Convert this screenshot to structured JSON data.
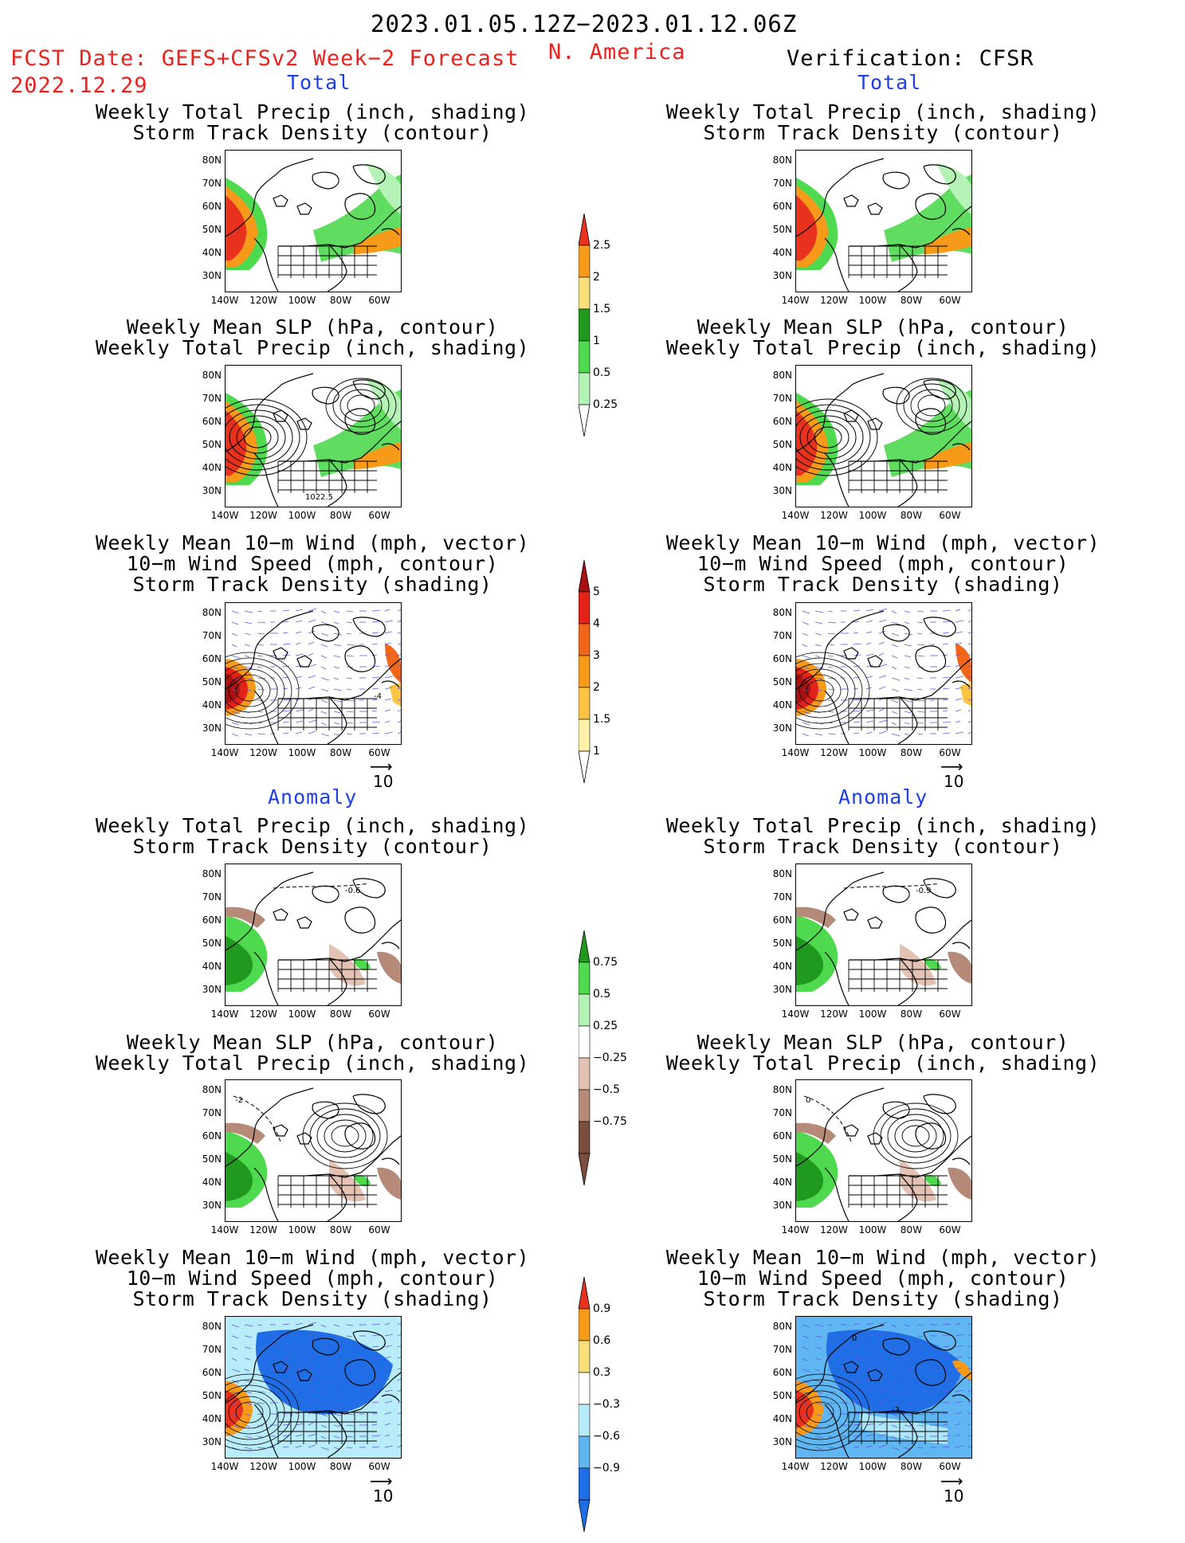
{
  "header": {
    "period": "2023.01.05.12Z−2023.01.12.06Z",
    "fcst_label": "FCST Date: GEFS+CFSv2 Week−2 Forecast",
    "fcst_date": "2022.12.29",
    "region": "N. America",
    "verification": "Verification: CFSR"
  },
  "sections": {
    "total": "Total",
    "anomaly": "Anomaly"
  },
  "panel_titles": {
    "precip_track": [
      "Weekly Total Precip (inch, shading)",
      "Storm Track Density (contour)"
    ],
    "slp_precip": [
      "Weekly Mean SLP (hPa, contour)",
      "Weekly Total Precip (inch, shading)"
    ],
    "wind_track": [
      "Weekly Mean 10−m Wind (mph, vector)",
      "10−m Wind Speed (mph, contour)",
      "Storm Track Density (shading)"
    ]
  },
  "axes": {
    "lat_labels": [
      "80N",
      "70N",
      "60N",
      "50N",
      "40N",
      "30N"
    ],
    "lon_labels": [
      "140W",
      "120W",
      "100W",
      "80W",
      "60W"
    ]
  },
  "vector_reference": "10",
  "contour_annotations": {
    "fcst_slp_total": "1022.5",
    "fcst_track_anom": "-0.6",
    "cfsr_track_anom": "-0.9",
    "fcst_slp_anom": "-2",
    "cfsr_slp_anom": "0",
    "cfsr_wind_anom_a": "0",
    "cfsr_wind_anom_b": "-3",
    "fcst_wind_total": "-4"
  },
  "colorbars": {
    "precip_total": {
      "labels": [
        "2.5",
        "2",
        "1.5",
        "1",
        "0.5",
        "0.25"
      ],
      "colors": [
        "#e8321e",
        "#f79a1a",
        "#f9df7a",
        "#1f9a1f",
        "#4fd94f",
        "#b5f2b5"
      ]
    },
    "track_total": {
      "labels": [
        "5",
        "4",
        "3",
        "2",
        "1.5",
        "1"
      ],
      "colors": [
        "#a8110f",
        "#e3231a",
        "#f2661a",
        "#f79a1a",
        "#fbc444",
        "#fef2a8"
      ]
    },
    "precip_anom": {
      "labels": [
        "0.75",
        "0.5",
        "0.25",
        "−0.25",
        "−0.5",
        "−0.75"
      ],
      "colors": [
        "#1f9a1f",
        "#4fd94f",
        "#b5f2b5",
        "#ffffff",
        "#e3c2b4",
        "#b58a78",
        "#7a4f3f"
      ]
    },
    "track_anom": {
      "labels": [
        "0.9",
        "0.6",
        "0.3",
        "−0.3",
        "−0.6",
        "−0.9"
      ],
      "colors": [
        "#e8321e",
        "#f79a1a",
        "#f9df7a",
        "#ffffff",
        "#b8ecfb",
        "#5fb6f2",
        "#1f6ee6"
      ]
    }
  },
  "colors": {
    "label_red": "#e8231f",
    "label_blue": "#1f3fe6",
    "precip_pos": "#4fd94f",
    "precip_neg": "#c49b8a",
    "track_neg": "#2b78e0",
    "vector_blue": "#5b5bdc"
  }
}
